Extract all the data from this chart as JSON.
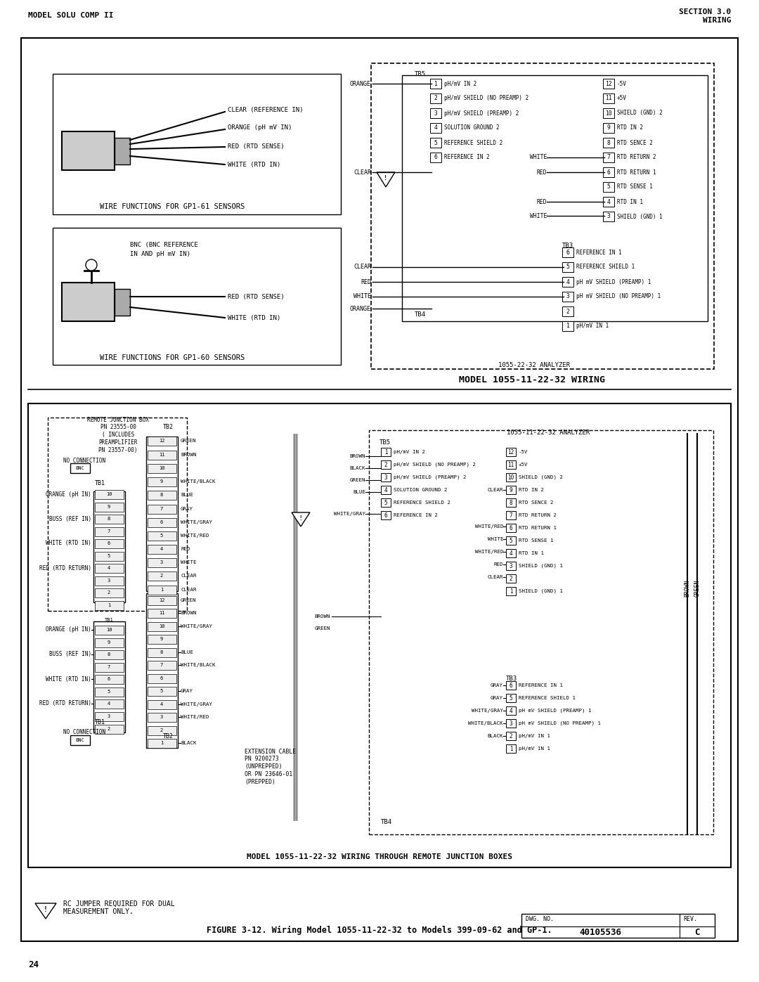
{
  "page_number": "24",
  "header_left": "MODEL SOLU COMP II",
  "header_right_line1": "SECTION 3.0",
  "header_right_line2": "WIRING",
  "figure_caption": "FIGURE 3-12. Wiring Model 1055-11-22-32 to Models 399-09-62 and GP-1.",
  "dwg_no": "40105536",
  "rev": "C",
  "bottom_title": "MODEL 1055-11-22-32 WIRING THROUGH REMOTE JUNCTION BOXES",
  "top_title": "MODEL 1055-11-22-32 WIRING",
  "bg_color": "#ffffff"
}
